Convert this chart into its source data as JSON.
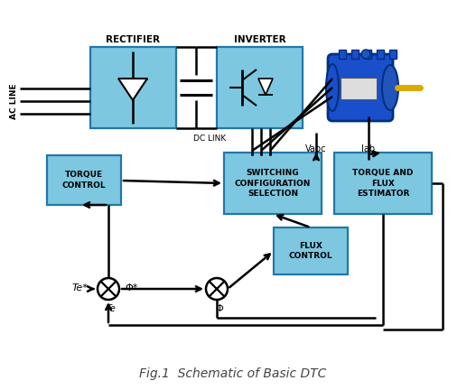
{
  "title": "Fig.1  Schematic of Basic DTC",
  "title_fontsize": 10,
  "title_color": "#444444",
  "box_fill": "#7dc8e0",
  "box_edge": "#2277aa",
  "line_color": "black",
  "lw": 1.8,
  "text_color": "black",
  "label_fontsize": 7.0,
  "bg_color": "white",
  "rectifier_label": "RECTIFIER",
  "inverter_label": "INVERTER",
  "scs_label": "SWITCHING\nCONFIGURATION\nSELECTION",
  "tfe_label": "TORQUE AND\nFLUX\nESTIMATOR",
  "tc_label": "TORQUE\nCONTROL",
  "fc_label": "FLUX\nCONTROL",
  "dclink_label": "DC LINK",
  "acline_label": "AC LINE",
  "vabc_label": "Vabc",
  "iab_label": "Iab",
  "te_star": "Te*",
  "te_fb": "Te",
  "phi_star": "Φ*",
  "phi_fb": "Φ"
}
